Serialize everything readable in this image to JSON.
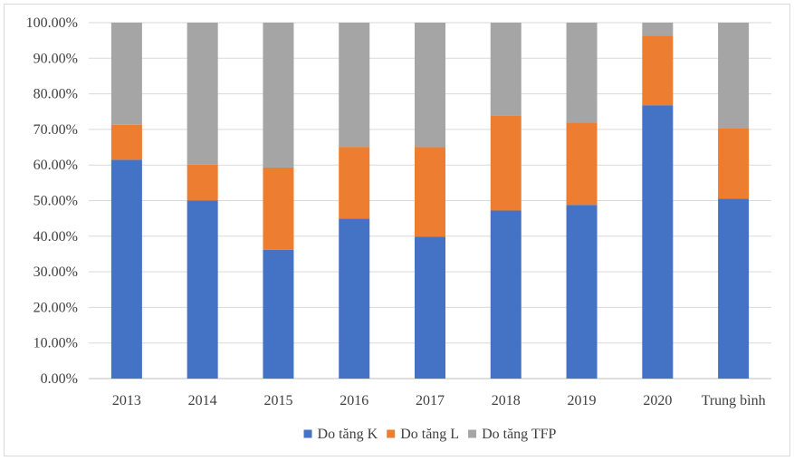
{
  "chart_data": {
    "type": "bar",
    "stacked": true,
    "categories": [
      "2013",
      "2014",
      "2015",
      "2016",
      "2017",
      "2018",
      "2019",
      "2020",
      "Trung bình"
    ],
    "series": [
      {
        "name": "Do tăng K",
        "color": "#4472c4",
        "values": [
          61.5,
          50.0,
          36.2,
          44.9,
          39.9,
          47.2,
          48.8,
          76.8,
          50.5
        ]
      },
      {
        "name": "Do tăng L",
        "color": "#ed7d31",
        "values": [
          9.8,
          10.1,
          23.1,
          20.2,
          25.1,
          26.6,
          23.1,
          19.6,
          19.9
        ]
      },
      {
        "name": "Do tăng TFP",
        "color": "#a5a5a5",
        "values": [
          28.7,
          39.9,
          40.7,
          34.9,
          35.0,
          26.2,
          28.1,
          3.6,
          29.6
        ]
      }
    ],
    "ylim": [
      0,
      100
    ],
    "yticks": [
      "0.00%",
      "10.00%",
      "20.00%",
      "30.00%",
      "40.00%",
      "50.00%",
      "60.00%",
      "70.00%",
      "80.00%",
      "90.00%",
      "100.00%"
    ],
    "grid": true,
    "legend_position": "bottom"
  }
}
